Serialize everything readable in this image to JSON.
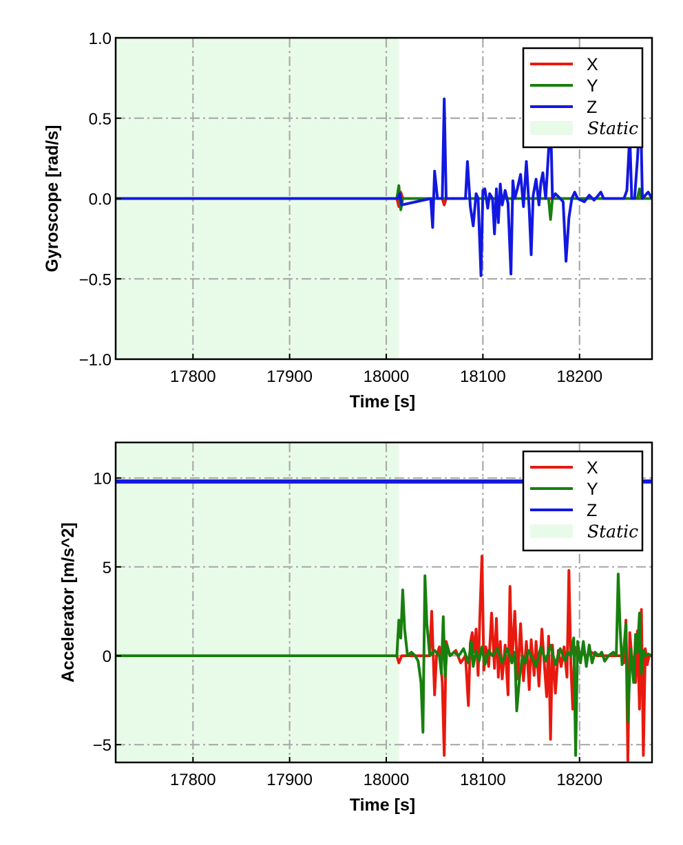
{
  "chart_data": [
    {
      "type": "line",
      "xlabel": "Time [s]",
      "ylabel": "Gyroscope [rad/s]",
      "xlim": [
        17720,
        18275
      ],
      "ylim": [
        -1.0,
        1.0
      ],
      "xticks": [
        17800,
        17900,
        18000,
        18100,
        18200
      ],
      "xtick_labels": [
        "17800",
        "17900",
        "18000",
        "18100",
        "18200"
      ],
      "yticks": [
        1.0,
        0.5,
        0.0,
        -0.5,
        -1.0
      ],
      "ytick_labels": [
        "1.0",
        "0.5",
        "0.0",
        "−0.5",
        "−1.0"
      ],
      "grid": true,
      "legend_position": "top-right",
      "static_region": [
        17720,
        18013
      ],
      "static_label": "Static",
      "colors": {
        "X": "#e8190e",
        "Y": "#17800e",
        "Z": "#1218e0",
        "static": "#e8fbe8"
      },
      "series": [
        {
          "name": "X",
          "x": [
            17720,
            18011,
            18013,
            18015,
            18017,
            18058,
            18060,
            18062,
            18275
          ],
          "y": [
            0,
            0,
            -0.05,
            0.04,
            0,
            0,
            -0.04,
            0,
            0
          ]
        },
        {
          "name": "Y",
          "x": [
            17720,
            18011,
            18013,
            18015,
            18017,
            18168,
            18170,
            18172,
            18260,
            18262,
            18264,
            18275
          ],
          "y": [
            0,
            0,
            0.08,
            -0.07,
            0,
            0,
            -0.13,
            0,
            0,
            0.06,
            0,
            0
          ]
        },
        {
          "name": "Z",
          "x": [
            17720,
            18012,
            18014,
            18016,
            18046,
            18048,
            18050,
            18053,
            18058,
            18060,
            18062,
            18064,
            18082,
            18084,
            18087,
            18090,
            18093,
            18095,
            18098,
            18100,
            18102,
            18105,
            18107,
            18110,
            18112,
            18114,
            18116,
            18118,
            18120,
            18123,
            18126,
            18129,
            18131,
            18133,
            18136,
            18139,
            18142,
            18145,
            18148,
            18150,
            18152,
            18155,
            18158,
            18160,
            18162,
            18165,
            18168,
            18170,
            18172,
            18175,
            18180,
            18183,
            18186,
            18189,
            18192,
            18195,
            18198,
            18205,
            18210,
            18215,
            18218,
            18222,
            18225,
            18246,
            18249,
            18252,
            18254,
            18257,
            18260,
            18263,
            18265,
            18268,
            18271,
            18275
          ],
          "y": [
            0,
            0,
            0.03,
            -0.04,
            0,
            -0.18,
            0.17,
            0,
            0,
            0.62,
            0,
            0,
            0,
            0.23,
            -0.05,
            -0.17,
            0.03,
            0,
            -0.48,
            0.05,
            0.06,
            -0.06,
            0.03,
            0,
            -0.22,
            0.06,
            -0.15,
            0.09,
            -0.04,
            0.05,
            -0.03,
            -0.47,
            0.11,
            0,
            0.07,
            0.15,
            -0.05,
            0.23,
            -0.07,
            -0.35,
            0.02,
            0.12,
            -0.04,
            0.1,
            0.16,
            0,
            0.3,
            0.52,
            0,
            0.03,
            0,
            -0.02,
            -0.39,
            -0.12,
            0,
            0.04,
            0,
            -0.02,
            0.02,
            -0.01,
            0.01,
            0.04,
            0,
            0,
            0.05,
            0.4,
            0,
            0,
            0.25,
            0.6,
            0,
            0.02,
            0.04,
            0
          ]
        }
      ]
    },
    {
      "type": "line",
      "xlabel": "Time [s]",
      "ylabel": "Accelerator [m/s^2]",
      "xlim": [
        17720,
        18275
      ],
      "ylim": [
        -6,
        12
      ],
      "xticks": [
        17800,
        17900,
        18000,
        18100,
        18200
      ],
      "xtick_labels": [
        "17800",
        "17900",
        "18000",
        "18100",
        "18200"
      ],
      "yticks": [
        10,
        5,
        0,
        -5
      ],
      "ytick_labels": [
        "10",
        "5",
        "0",
        "−5"
      ],
      "grid": true,
      "legend_position": "top-right",
      "static_region": [
        17720,
        18013
      ],
      "static_label": "Static",
      "colors": {
        "X": "#e8190e",
        "Y": "#17800e",
        "Z": "#1218e0",
        "static": "#e8fbe8"
      },
      "series": [
        {
          "name": "X",
          "x": [
            17720,
            18011,
            18013,
            18016,
            18020,
            18030,
            18045,
            18047,
            18050,
            18052,
            18055,
            18058,
            18060,
            18062,
            18066,
            18072,
            18077,
            18082,
            18085,
            18087,
            18089,
            18091,
            18093,
            18095,
            18097,
            18099,
            18101,
            18103,
            18106,
            18109,
            18112,
            18114,
            18116,
            18118,
            18120,
            18123,
            18126,
            18128,
            18130,
            18133,
            18136,
            18139,
            18142,
            18145,
            18148,
            18150,
            18153,
            18155,
            18158,
            18161,
            18164,
            18166,
            18168,
            18170,
            18172,
            18175,
            18178,
            18181,
            18184,
            18187,
            18189,
            18191,
            18193,
            18195,
            18198,
            18202,
            18207,
            18212,
            18218,
            18222,
            18230,
            18240,
            18244,
            18246,
            18248,
            18250,
            18252,
            18254,
            18256,
            18258,
            18260,
            18262,
            18264,
            18266,
            18268,
            18270,
            18272,
            18275
          ],
          "y": [
            0,
            0,
            -0.4,
            0,
            0,
            0,
            0,
            2.5,
            -2.2,
            0,
            0.5,
            -1.5,
            -5.6,
            0.8,
            0,
            0.3,
            -0.4,
            0,
            -2.8,
            0.7,
            1.3,
            0.2,
            1.5,
            -1.1,
            2.5,
            5.6,
            -0.8,
            0.5,
            -0.6,
            2.4,
            -0.7,
            2.1,
            -1.2,
            0.8,
            -1.3,
            0.6,
            -2.2,
            3.9,
            -0.4,
            2.5,
            -1.3,
            1.8,
            -1.4,
            0.8,
            -1.9,
            0.9,
            -1.1,
            0.8,
            -1.7,
            1.5,
            -0.8,
            -2.3,
            1.1,
            -4.7,
            0.6,
            -2.1,
            0.3,
            -0.6,
            0.5,
            -1.2,
            4.8,
            -0.5,
            -3.0,
            0.5,
            0,
            0.2,
            0,
            0.2,
            0,
            0,
            0,
            0,
            0,
            -0.4,
            2.0,
            -5.9,
            1.3,
            0,
            -0.3,
            -1.5,
            1.4,
            -3.0,
            2.6,
            -5.6,
            0.4,
            -0.5,
            0,
            0
          ]
        },
        {
          "name": "Y",
          "x": [
            17720,
            18011,
            18013,
            18015,
            18017,
            18019,
            18022,
            18026,
            18030,
            18033,
            18036,
            18038,
            18040,
            18042,
            18045,
            18050,
            18055,
            18057,
            18059,
            18061,
            18063,
            18066,
            18070,
            18075,
            18080,
            18085,
            18088,
            18090,
            18093,
            18096,
            18099,
            18102,
            18106,
            18110,
            18115,
            18120,
            18125,
            18130,
            18133,
            18135,
            18138,
            18141,
            18144,
            18147,
            18150,
            18155,
            18160,
            18165,
            18170,
            18175,
            18180,
            18185,
            18188,
            18191,
            18194,
            18196,
            18198,
            18201,
            18204,
            18207,
            18210,
            18213,
            18216,
            18220,
            18223,
            18226,
            18230,
            18235,
            18238,
            18240,
            18242,
            18244,
            18246,
            18248,
            18250,
            18253,
            18256,
            18258,
            18260,
            18262,
            18264,
            18266,
            18268,
            18271,
            18275
          ],
          "y": [
            0,
            0,
            2.0,
            1.0,
            3.7,
            1.5,
            0,
            0.2,
            0,
            -0.3,
            -1.5,
            -4.3,
            4.5,
            1.8,
            0,
            0.3,
            0,
            -1.0,
            2.2,
            -1.2,
            0.6,
            0,
            0.2,
            0,
            0.4,
            -0.4,
            0.8,
            -0.6,
            0.3,
            -0.3,
            0.5,
            -0.5,
            0.3,
            0,
            0.4,
            -0.4,
            0.4,
            -0.4,
            0.2,
            -3.1,
            -1.2,
            0,
            -0.4,
            0.3,
            0,
            -0.6,
            0.5,
            -0.3,
            0.6,
            -0.5,
            0.4,
            -0.3,
            0.2,
            0,
            1.0,
            -5.6,
            0.8,
            -0.4,
            0.8,
            -0.6,
            0.6,
            -0.4,
            0.2,
            0,
            0.2,
            -0.3,
            0,
            0.2,
            0,
            4.6,
            1.5,
            -0.5,
            0.5,
            1.8,
            -3.7,
            0.4,
            -1.5,
            1.2,
            0.2,
            2.4,
            -1.0,
            0.3,
            0,
            0.1,
            0
          ]
        },
        {
          "name": "Z",
          "x": [
            17720,
            17800,
            17900,
            18000,
            18100,
            18200,
            18275
          ],
          "y": [
            9.8,
            9.8,
            9.8,
            9.8,
            9.8,
            9.8,
            9.8
          ]
        }
      ]
    }
  ]
}
